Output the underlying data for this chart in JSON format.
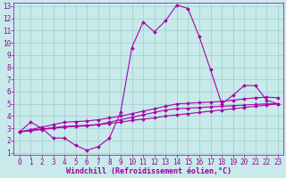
{
  "xlabel": "Windchill (Refroidissement éolien,°C)",
  "xlim": [
    -0.5,
    23.5
  ],
  "ylim": [
    0.8,
    13.3
  ],
  "xticks": [
    0,
    1,
    2,
    3,
    4,
    5,
    6,
    7,
    8,
    9,
    10,
    11,
    12,
    13,
    14,
    15,
    16,
    17,
    18,
    19,
    20,
    21,
    22,
    23
  ],
  "yticks": [
    1,
    2,
    3,
    4,
    5,
    6,
    7,
    8,
    9,
    10,
    11,
    12,
    13
  ],
  "bg_color": "#c8eaea",
  "grid_color": "#a0cccc",
  "line_color": "#aa00aa",
  "line1_y": [
    2.7,
    3.5,
    3.0,
    2.2,
    2.2,
    1.6,
    1.2,
    1.5,
    2.2,
    4.3,
    9.6,
    11.7,
    10.9,
    11.8,
    13.1,
    12.8,
    10.5,
    7.8,
    5.0,
    5.7,
    6.5,
    6.5,
    5.3,
    5.0
  ],
  "line2_y": [
    2.7,
    2.85,
    2.95,
    3.05,
    3.15,
    3.2,
    3.25,
    3.3,
    3.4,
    3.5,
    3.65,
    3.75,
    3.85,
    4.0,
    4.1,
    4.2,
    4.3,
    4.4,
    4.5,
    4.6,
    4.7,
    4.8,
    4.9,
    5.0
  ],
  "line3_y": [
    2.7,
    2.8,
    2.9,
    3.0,
    3.1,
    3.15,
    3.2,
    3.3,
    3.5,
    3.7,
    3.9,
    4.1,
    4.3,
    4.5,
    4.6,
    4.65,
    4.7,
    4.75,
    4.8,
    4.85,
    4.9,
    4.95,
    5.0,
    5.0
  ],
  "line4_y": [
    2.7,
    2.9,
    3.1,
    3.3,
    3.5,
    3.55,
    3.6,
    3.7,
    3.85,
    4.0,
    4.2,
    4.4,
    4.6,
    4.8,
    5.0,
    5.05,
    5.1,
    5.15,
    5.2,
    5.3,
    5.4,
    5.5,
    5.55,
    5.5
  ],
  "font_color": "#990099",
  "tick_fontsize": 5.5,
  "label_fontsize": 6.0
}
